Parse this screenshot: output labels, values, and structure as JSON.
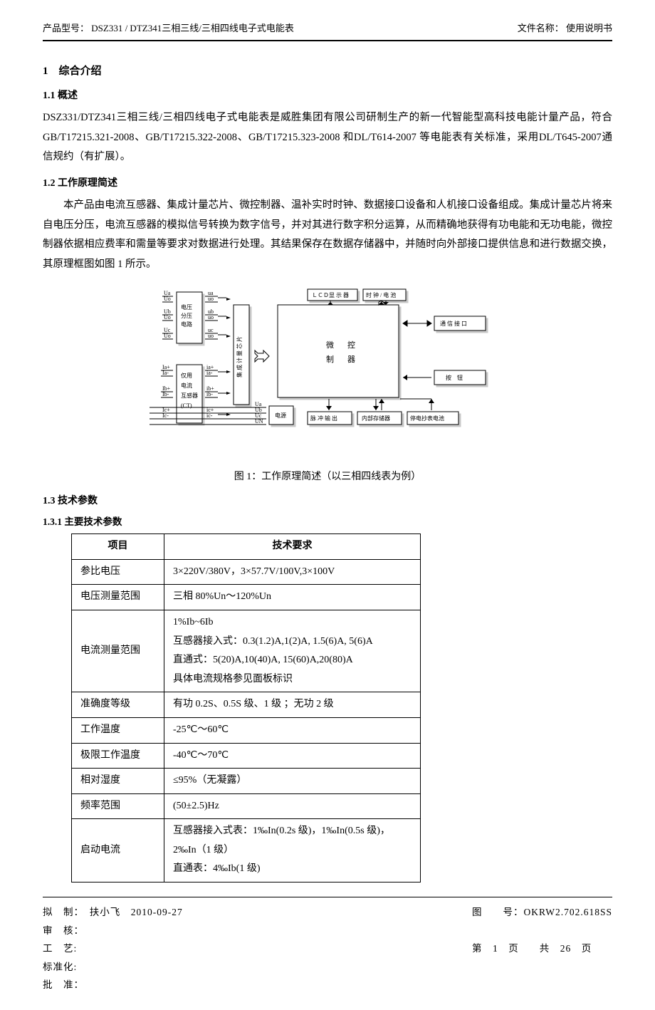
{
  "header": {
    "left_label": "产品型号：",
    "left_value": "DSZ331 / DTZ341三相三线/三相四线电子式电能表",
    "right_label": "文件名称：",
    "right_value": "使用说明书"
  },
  "sections": {
    "s1": "1　综合介绍",
    "s1_1": "1.1 概述",
    "s1_1_text": "DSZ331/DTZ341三相三线/三相四线电子式电能表是威胜集团有限公司研制生产的新一代智能型高科技电能计量产品，符合GB/T17215.321-2008、GB/T17215.322-2008、GB/T17215.323-2008 和DL/T614-2007 等电能表有关标准，采用DL/T645-2007通信规约（有扩展）。",
    "s1_2": "1.2 工作原理简述",
    "s1_2_text": "本产品由电流互感器、集成计量芯片、微控制器、温补实时时钟、数据接口设备和人机接口设备组成。集成计量芯片将来自电压分压，电流互感器的模拟信号转换为数字信号，并对其进行数字积分运算，从而精确地获得有功电能和无功电能，微控制器依据相应费率和需量等要求对数据进行处理。其结果保存在数据存储器中，并随时向外部接口提供信息和进行数据交换，其原理框图如图 1 所示。",
    "s1_3": "1.3 技术参数",
    "s1_3_1": "1.3.1 主要技术参数"
  },
  "diagram": {
    "caption": "图 1：工作原理简述（以三相四线表为例）",
    "blocks": {
      "voltage_div": "电压\n分压\n电路",
      "ct": "仅用\n电流\n互感器\n(CT)",
      "meter_chip": "集成计量芯片",
      "power": "电源",
      "mcu": "微　控\n制　器",
      "lcd": "ＬＣＤ显 示 器",
      "clock": "时 钟 / 电 池",
      "comm": "通 信 接 口",
      "button": "按　钮",
      "pulse": "脉 冲 输 出",
      "memory": "内部存储器",
      "backup": "停电抄表电池"
    },
    "labels": {
      "ua": "Ua",
      "uo": "Uo",
      "ub": "Ub",
      "uc": "Uc",
      "iap": "Ia+",
      "iam": "Ia-",
      "ibp": "Ib+",
      "ibm": "Ib-",
      "icp": "Ic+",
      "icm": "Ic-",
      "sua": "ua",
      "suo": "uo",
      "sub": "ub",
      "suc": "uc",
      "sia": "ia+",
      "siam": "ia-",
      "sib": "ib+",
      "sibm": "ib-",
      "sic": "ic+",
      "sicm": "ic-",
      "pUa": "Ua",
      "pUb": "Ub",
      "pUc": "Uc",
      "pUN": "UN"
    },
    "colors": {
      "line": "#000000",
      "fill": "#ffffff",
      "text": "#000000",
      "shadow": "#c9c9c9"
    },
    "fontsize": 8
  },
  "table": {
    "headers": [
      "项目",
      "技术要求"
    ],
    "rows": [
      [
        "参比电压",
        "3×220V/380V，3×57.7V/100V,3×100V"
      ],
      [
        "电压测量范围",
        "三相 80%Un～120%Un"
      ],
      [
        "电流测量范围",
        "1%Ib~6Ib\n互感器接入式：0.3(1.2)A,1(2)A, 1.5(6)A, 5(6)A\n直通式：5(20)A,10(40)A, 15(60)A,20(80)A\n具体电流规格参见面板标识"
      ],
      [
        "准确度等级",
        "有功 0.2S、0.5S 级、1 级 ；无功 2 级"
      ],
      [
        "工作温度",
        "-25℃～60℃"
      ],
      [
        "极限工作温度",
        "-40℃～70℃"
      ],
      [
        "相对湿度",
        "≤95%（无凝露）"
      ],
      [
        "频率范围",
        "(50±2.5)Hz"
      ],
      [
        "启动电流",
        "互感器接入式表：1‰In(0.2s 级)，1‰In(0.5s 级)，2‰In（1 级）\n直通表：4‰Ib(1 级)"
      ]
    ]
  },
  "footer": {
    "left": [
      "拟　制：　扶小飞　2010-09-27",
      "审　核：",
      "工　艺:",
      "标准化:",
      "批　准："
    ],
    "right": [
      "图　　号：OKRW2.702.618SS",
      "",
      "第　1　页　　共　26　页"
    ]
  }
}
